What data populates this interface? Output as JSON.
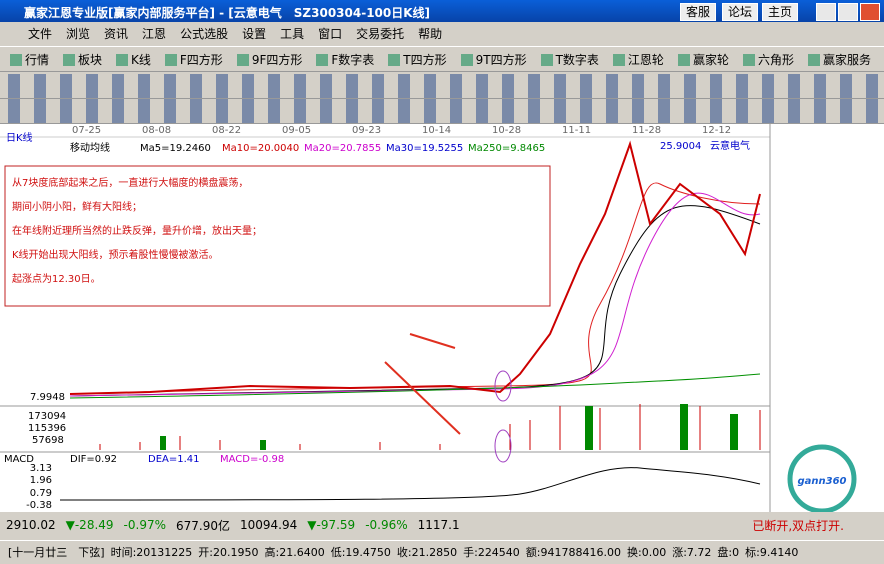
{
  "window": {
    "title": "赢家江恩专业版[赢家内部服务平台] - [云意电气　SZ300304-100日K线]",
    "buttons": [
      "客服",
      "论坛",
      "主页"
    ]
  },
  "menu": [
    "文件",
    "浏览",
    "资讯",
    "江恩",
    "公式选股",
    "设置",
    "工具",
    "窗口",
    "交易委托",
    "帮助"
  ],
  "toolbar": [
    "行情",
    "板块",
    "K线",
    "F四方形",
    "9F四方形",
    "F数字表",
    "T四方形",
    "9T四方形",
    "T数字表",
    "江恩轮",
    "赢家轮",
    "六角形",
    "赢家服务"
  ],
  "chart": {
    "period": "日K线",
    "indicator": "移动均线",
    "ma": [
      "Ma5=19.2460",
      "Ma10=20.0040",
      "Ma20=20.7855",
      "Ma30=19.5255",
      "Ma250=9.8465"
    ],
    "dates": [
      "07-25",
      "08-08",
      "08-22",
      "09-05",
      "09-23",
      "10-14",
      "10-28",
      "11-11",
      "11-28",
      "12-12"
    ],
    "high_label": "25.9004",
    "stock_name": "云意电气",
    "low_label": "7.9948",
    "volume_ticks": [
      "173094",
      "115396",
      "57698"
    ],
    "annotation": [
      "从7块度底部起来之后，一直进行大幅度的横盘震荡，",
      "期间小阴小阳，鲜有大阳线；",
      "在年线附近理所当然的止跌反弹，量升价增，放出天量；",
      "K线开始出现大阳线，预示着股性慢慢被激活。",
      "起涨点为12.30日。"
    ]
  },
  "macd": {
    "name": "MACD",
    "dif": "DIF=0.92",
    "dea": "DEA=1.41",
    "macd": "MACD=-0.98",
    "ticks": [
      "3.13",
      "1.96",
      "0.79",
      "-0.38"
    ]
  },
  "logo": "gann360",
  "index_bar": {
    "sh": [
      "2910.02",
      "▼-28.49",
      "-0.97%",
      "677.90亿"
    ],
    "sz": [
      "10094.94",
      "▼-97.59",
      "-0.96%",
      "1117.1"
    ],
    "status": "已断开,双点打开."
  },
  "status_bar": [
    "[十一月廿三　下弦]",
    "时间:20131225",
    "开:20.1950",
    "高:21.6400",
    "低:19.4750",
    "收:21.2850",
    "手:224540",
    "额:941788416.00",
    "换:0.00",
    "涨:7.72",
    "盘:0",
    "标:9.4140"
  ]
}
